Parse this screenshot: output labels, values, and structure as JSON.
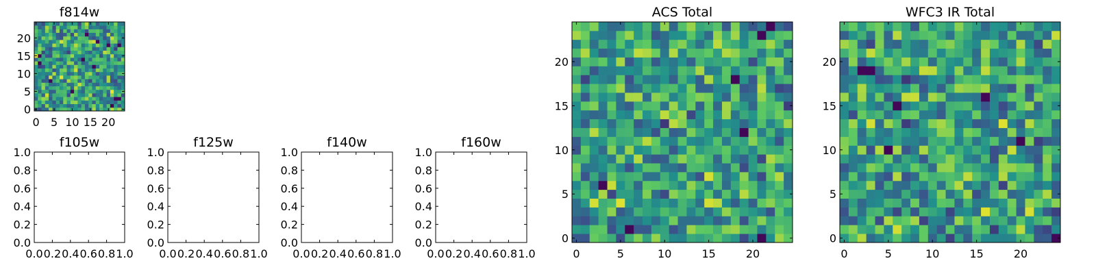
{
  "figure": {
    "background": "#ffffff",
    "colormap": "viridis",
    "colormap_stops": [
      "#440154",
      "#3b528b",
      "#21918c",
      "#5ec962",
      "#fde725"
    ]
  },
  "chart_data": [
    {
      "id": "f814w",
      "type": "heatmap",
      "title": "f814w",
      "xlabel": "",
      "ylabel": "",
      "grid_size": [
        25,
        25
      ],
      "xlim": [
        -0.5,
        24.5
      ],
      "ylim": [
        -0.5,
        24.5
      ],
      "xticks": [
        0,
        5,
        10,
        15,
        20
      ],
      "yticks": [
        0,
        5,
        10,
        15,
        20
      ],
      "value_range": [
        0,
        1
      ],
      "seed": 814
    },
    {
      "id": "f105w",
      "type": "heatmap",
      "title": "f105w",
      "empty": true,
      "xlim": [
        0,
        1
      ],
      "ylim": [
        0,
        1
      ],
      "xticks": [
        "0.0",
        "0.2",
        "0.4",
        "0.6",
        "0.8",
        "1.0"
      ],
      "yticks": [
        "0.0",
        "0.2",
        "0.4",
        "0.6",
        "0.8",
        "1.0"
      ]
    },
    {
      "id": "f125w",
      "type": "heatmap",
      "title": "f125w",
      "empty": true,
      "xlim": [
        0,
        1
      ],
      "ylim": [
        0,
        1
      ],
      "xticks": [
        "0.0",
        "0.2",
        "0.4",
        "0.6",
        "0.8",
        "1.0"
      ],
      "yticks": [
        "0.0",
        "0.2",
        "0.4",
        "0.6",
        "0.8",
        "1.0"
      ]
    },
    {
      "id": "f140w",
      "type": "heatmap",
      "title": "f140w",
      "empty": true,
      "xlim": [
        0,
        1
      ],
      "ylim": [
        0,
        1
      ],
      "xticks": [
        "0.0",
        "0.2",
        "0.4",
        "0.6",
        "0.8",
        "1.0"
      ],
      "yticks": [
        "0.0",
        "0.2",
        "0.4",
        "0.6",
        "0.8",
        "1.0"
      ]
    },
    {
      "id": "f160w",
      "type": "heatmap",
      "title": "f160w",
      "empty": true,
      "xlim": [
        0,
        1
      ],
      "ylim": [
        0,
        1
      ],
      "xticks": [
        "0.0",
        "0.2",
        "0.4",
        "0.6",
        "0.8",
        "1.0"
      ],
      "yticks": [
        "0.0",
        "0.2",
        "0.4",
        "0.6",
        "0.8",
        "1.0"
      ]
    },
    {
      "id": "acs-total",
      "type": "heatmap",
      "title": "ACS Total",
      "xlabel": "",
      "ylabel": "",
      "grid_size": [
        25,
        25
      ],
      "xlim": [
        -0.5,
        24.5
      ],
      "ylim": [
        -0.5,
        24.5
      ],
      "xticks": [
        0,
        5,
        10,
        15,
        20
      ],
      "yticks": [
        0,
        5,
        10,
        15,
        20
      ],
      "value_range": [
        0,
        1
      ],
      "seed": 1001
    },
    {
      "id": "wfc3-ir-total",
      "type": "heatmap",
      "title": "WFC3 IR Total",
      "xlabel": "",
      "ylabel": "",
      "grid_size": [
        25,
        25
      ],
      "xlim": [
        -0.5,
        24.5
      ],
      "ylim": [
        -0.5,
        24.5
      ],
      "xticks": [
        0,
        5,
        10,
        15,
        20
      ],
      "yticks": [
        0,
        5,
        10,
        15,
        20
      ],
      "value_range": [
        0,
        1
      ],
      "seed": 2002
    }
  ]
}
